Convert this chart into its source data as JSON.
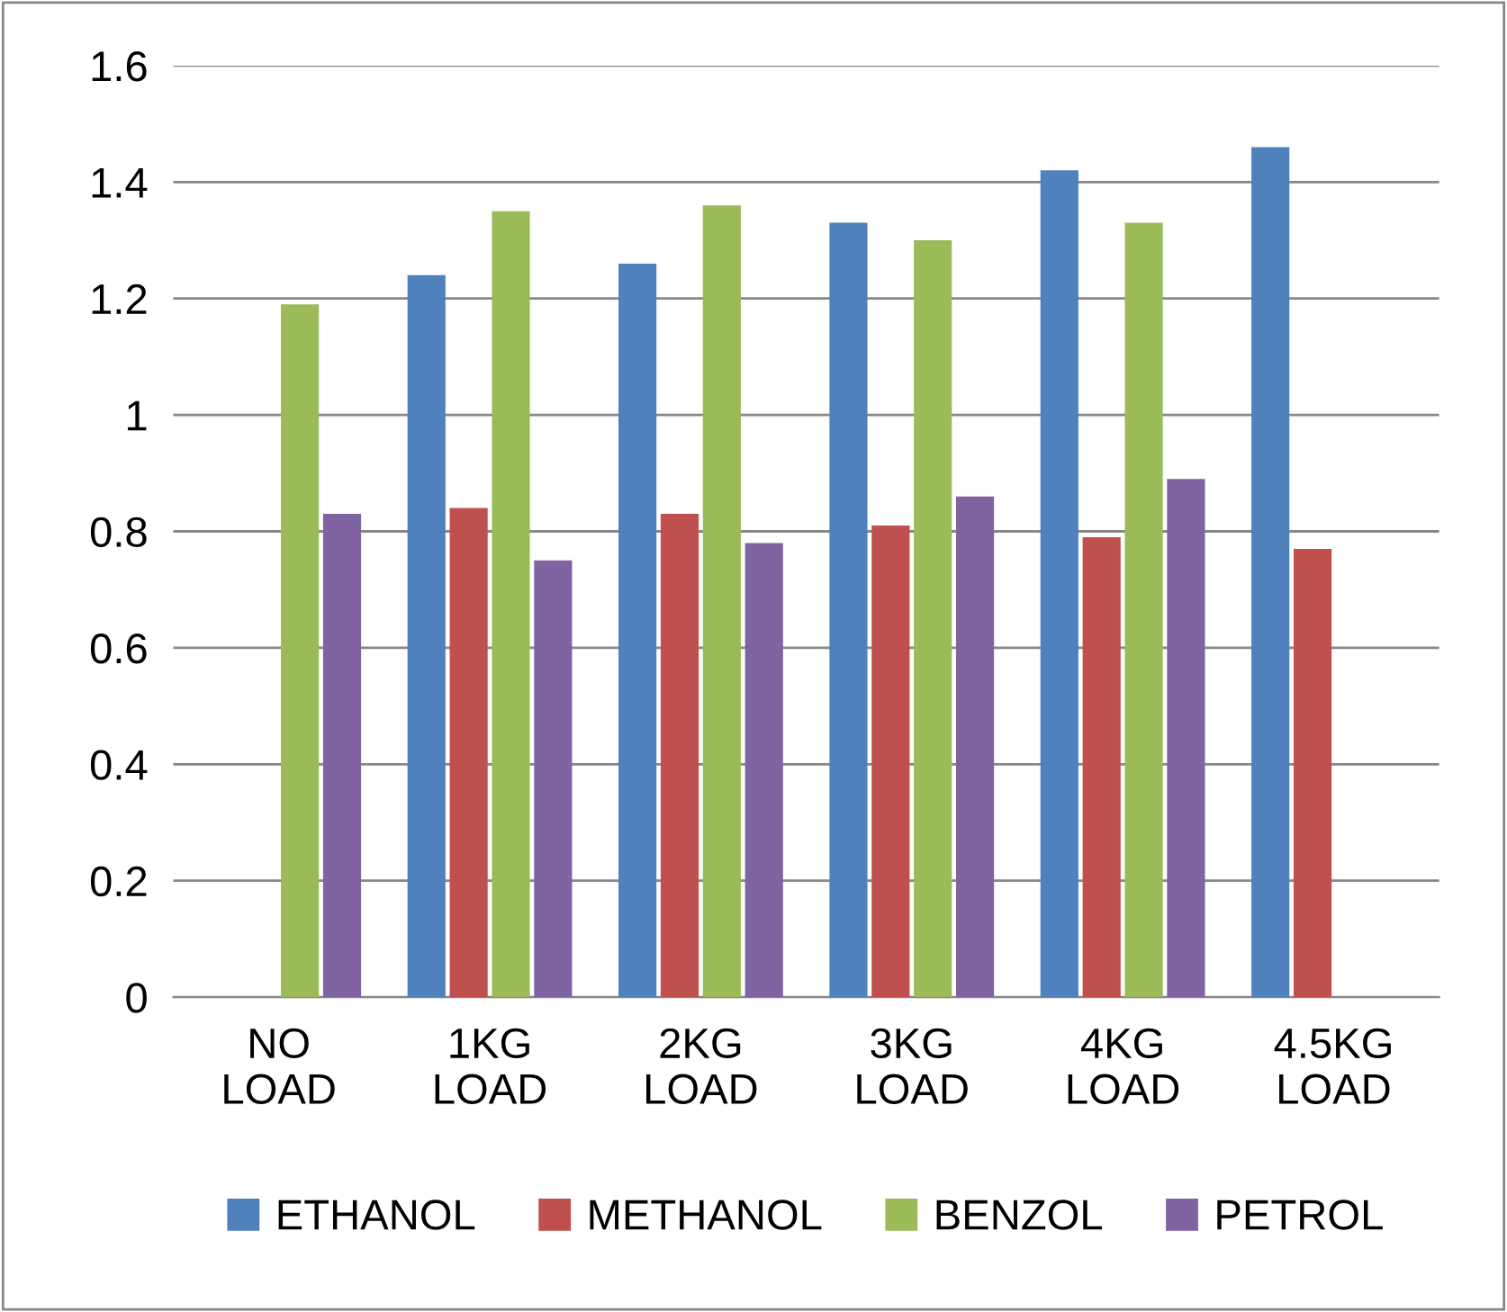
{
  "chart_data": {
    "type": "bar",
    "categories": [
      "NO LOAD",
      "1KG LOAD",
      "2KG LOAD",
      "3KG LOAD",
      "4KG LOAD",
      "4.5KG LOAD"
    ],
    "series": [
      {
        "name": "ETHANOL",
        "color": "#4f81bd",
        "values": [
          null,
          1.24,
          1.26,
          1.33,
          1.42,
          1.46
        ]
      },
      {
        "name": "METHANOL",
        "color": "#c0504d",
        "values": [
          null,
          0.84,
          0.83,
          0.81,
          0.79,
          0.77
        ]
      },
      {
        "name": "BENZOL",
        "color": "#9bbb59",
        "values": [
          1.19,
          1.35,
          1.36,
          1.3,
          1.33,
          null
        ]
      },
      {
        "name": "PETROL",
        "color": "#8064a2",
        "values": [
          0.83,
          0.75,
          0.78,
          0.86,
          0.89,
          null
        ]
      }
    ],
    "ylim": [
      0,
      1.6
    ],
    "yticks": [
      0,
      0.2,
      0.4,
      0.6,
      0.8,
      1,
      1.2,
      1.4,
      1.6
    ],
    "grid": "y",
    "legend": "bottom"
  }
}
